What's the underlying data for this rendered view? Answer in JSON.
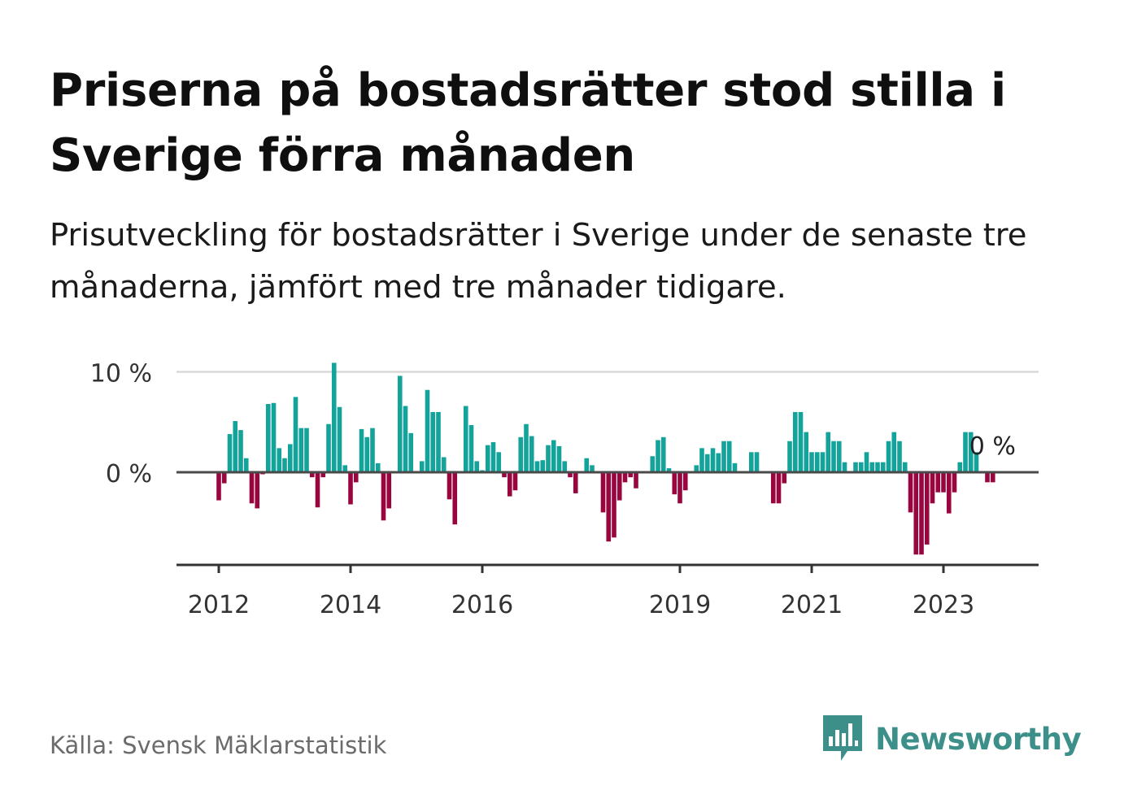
{
  "title": "Priserna på bostadsrätter stod stilla i Sverige förra månaden",
  "subtitle": "Prisutveckling för bostadsrätter i Sverige under de senaste tre månaderna, jämfört med tre månader tidigare.",
  "source": "Källa: Svensk Mäklarstatistik",
  "logo": {
    "name": "Newsworthy",
    "icon": "bar-chart-speech-bubble-icon"
  },
  "colors": {
    "positive": "#14a39a",
    "negative": "#99063f",
    "axis": "#333333",
    "grid": "#d9d9d9",
    "logo": "#3d8f8a"
  },
  "chart_data": {
    "type": "bar",
    "x_start": "2012-01",
    "x_tick_labels": [
      {
        "label": "2012",
        "x": 2012
      },
      {
        "label": "2014",
        "x": 2014
      },
      {
        "label": "2016",
        "x": 2016
      },
      {
        "label": "2019",
        "x": 2019
      },
      {
        "label": "2021",
        "x": 2021
      },
      {
        "label": "2023",
        "x": 2023
      }
    ],
    "y_ticks": [
      {
        "label": "10 %",
        "value": 10
      },
      {
        "label": "0 %",
        "value": 0
      }
    ],
    "ylim": [
      -9.4,
      10.9
    ],
    "last_value_label": "0 %",
    "values": [
      -2.8,
      -1.1,
      3.8,
      5.1,
      4.2,
      1.4,
      -3.1,
      -3.6,
      -0.2,
      6.8,
      6.9,
      2.4,
      1.4,
      2.8,
      7.5,
      4.4,
      4.4,
      -0.5,
      -3.5,
      -0.5,
      4.8,
      10.9,
      6.5,
      0.7,
      -3.2,
      -1.0,
      4.3,
      3.5,
      4.4,
      0.9,
      -4.8,
      -3.6,
      0.0,
      9.6,
      6.6,
      3.9,
      0.0,
      1.1,
      8.2,
      6.0,
      6.0,
      1.5,
      -2.7,
      -5.2,
      0.0,
      6.6,
      4.7,
      1.1,
      0.2,
      2.7,
      3.0,
      2.0,
      -0.5,
      -2.4,
      -1.8,
      3.5,
      4.8,
      3.6,
      1.1,
      1.2,
      2.7,
      3.2,
      2.6,
      1.1,
      -0.5,
      -2.1,
      0.0,
      1.4,
      0.7,
      0.0,
      -4.0,
      -6.9,
      -6.5,
      -2.8,
      -1.0,
      -0.5,
      -1.6,
      -0.1,
      -0.1,
      1.6,
      3.2,
      3.5,
      0.4,
      -2.2,
      -3.1,
      -1.8,
      0.0,
      0.7,
      2.4,
      1.8,
      2.4,
      1.9,
      3.1,
      3.1,
      0.9,
      0.0,
      0.0,
      2.0,
      2.0,
      0.0,
      0.0,
      -3.1,
      -3.1,
      -1.1,
      3.1,
      6.0,
      6.0,
      4.0,
      2.0,
      2.0,
      2.0,
      4.0,
      3.1,
      3.1,
      1.0,
      0.0,
      1.0,
      1.0,
      2.0,
      1.0,
      1.0,
      1.0,
      3.1,
      4.0,
      3.1,
      1.0,
      -4.0,
      -8.2,
      -8.2,
      -7.2,
      -3.1,
      -2.0,
      -2.0,
      -4.1,
      -2.0,
      1.0,
      4.0,
      4.0,
      2.0,
      0.0,
      -1.0,
      -1.0,
      0.0
    ]
  }
}
